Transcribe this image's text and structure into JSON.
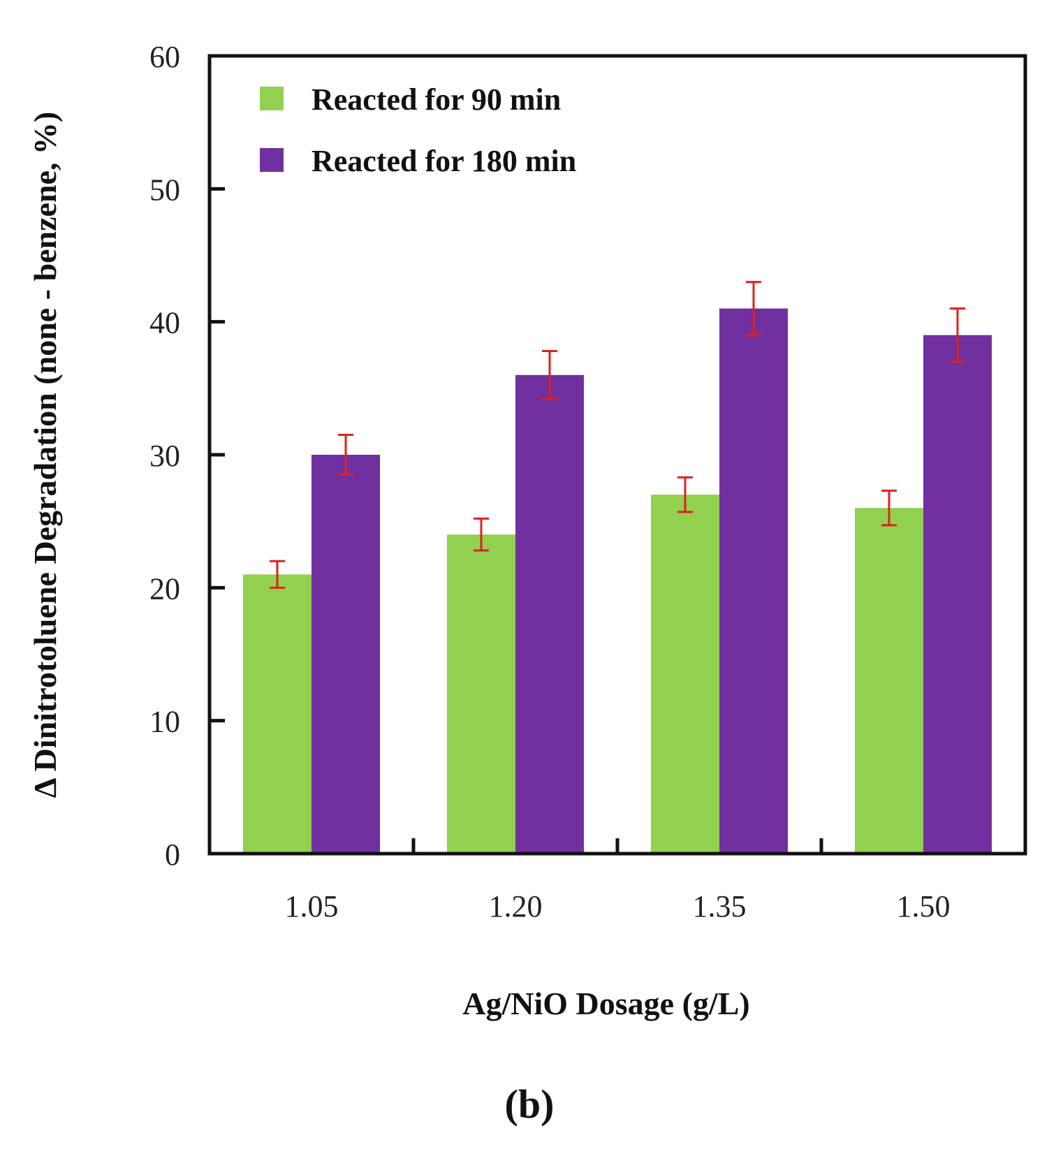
{
  "chart_data": {
    "type": "bar",
    "categories": [
      "1.05",
      "1.20",
      "1.35",
      "1.50"
    ],
    "series": [
      {
        "name": "Reacted for 90 min",
        "color": "#92d050",
        "values": [
          21,
          24,
          27,
          26
        ],
        "errors": [
          1,
          1.2,
          1.3,
          1.3
        ]
      },
      {
        "name": "Reacted for 180 min",
        "color": "#7030a0",
        "values": [
          30,
          36,
          41,
          39
        ],
        "errors": [
          1.5,
          1.8,
          2,
          2
        ]
      }
    ],
    "error_bar_color": "#e0201e",
    "xlabel": "Ag/NiO Dosage (g/L)",
    "ylabel": "Δ Dinitrotoluene Degradation (none - benzene, %)",
    "ylim": [
      0,
      60
    ],
    "yticks": [
      "0",
      "10",
      "20",
      "30",
      "40",
      "50",
      "60"
    ],
    "legend_position": "top-left",
    "grid": false
  },
  "panel_label": "(b)"
}
